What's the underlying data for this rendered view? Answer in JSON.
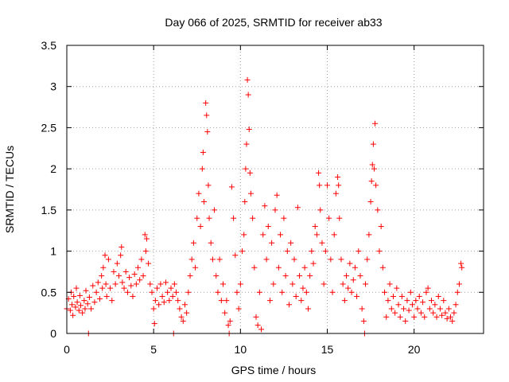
{
  "chart_data": {
    "type": "scatter",
    "title": "Day 066 of 2025, SRMTID for receiver ab33",
    "xlabel": "GPS time / hours",
    "ylabel": "SRMTID / TECUs",
    "xlim": [
      0,
      24
    ],
    "ylim": [
      0,
      3.5
    ],
    "xticks": [
      0,
      5,
      10,
      15,
      20
    ],
    "xtick_labels": [
      "0",
      "5",
      "10",
      "15",
      "20"
    ],
    "yticks": [
      0,
      0.5,
      1,
      1.5,
      2,
      2.5,
      3,
      3.5
    ],
    "ytick_labels": [
      "0",
      "0.5",
      "1",
      "1.5",
      "2",
      "2.5",
      "3",
      "3.5"
    ],
    "grid": true,
    "marker": "+",
    "color": "#ff0000",
    "series": [
      {
        "name": "SRMTID",
        "points": [
          [
            0.0,
            0.3
          ],
          [
            0.1,
            0.42
          ],
          [
            0.2,
            0.28
          ],
          [
            0.25,
            0.5
          ],
          [
            0.3,
            0.35
          ],
          [
            0.35,
            0.22
          ],
          [
            0.4,
            0.45
          ],
          [
            0.5,
            0.32
          ],
          [
            0.55,
            0.55
          ],
          [
            0.6,
            0.38
          ],
          [
            0.7,
            0.28
          ],
          [
            0.75,
            0.46
          ],
          [
            0.8,
            0.34
          ],
          [
            0.9,
            0.25
          ],
          [
            1.0,
            0.4
          ],
          [
            1.05,
            0.3
          ],
          [
            1.1,
            0.52
          ],
          [
            1.2,
            0.36
          ],
          [
            1.25,
            0.0
          ],
          [
            1.3,
            0.44
          ],
          [
            1.4,
            0.3
          ],
          [
            1.5,
            0.58
          ],
          [
            1.6,
            0.38
          ],
          [
            1.7,
            0.5
          ],
          [
            1.8,
            0.62
          ],
          [
            1.9,
            0.42
          ],
          [
            2.0,
            0.7
          ],
          [
            2.05,
            0.55
          ],
          [
            2.1,
            0.8
          ],
          [
            2.2,
            0.95
          ],
          [
            2.25,
            0.6
          ],
          [
            2.3,
            0.45
          ],
          [
            2.4,
            0.9
          ],
          [
            2.5,
            0.55
          ],
          [
            2.6,
            0.4
          ],
          [
            2.7,
            0.75
          ],
          [
            2.8,
            0.6
          ],
          [
            2.9,
            0.85
          ],
          [
            3.0,
            0.7
          ],
          [
            3.1,
            0.95
          ],
          [
            3.15,
            1.05
          ],
          [
            3.2,
            0.62
          ],
          [
            3.3,
            0.55
          ],
          [
            3.4,
            0.75
          ],
          [
            3.5,
            0.5
          ],
          [
            3.6,
            0.68
          ],
          [
            3.7,
            0.58
          ],
          [
            3.8,
            0.45
          ],
          [
            3.9,
            0.72
          ],
          [
            4.0,
            0.6
          ],
          [
            4.1,
            0.8
          ],
          [
            4.2,
            0.65
          ],
          [
            4.3,
            0.9
          ],
          [
            4.4,
            0.7
          ],
          [
            4.5,
            1.2
          ],
          [
            4.55,
            1.0
          ],
          [
            4.6,
            1.15
          ],
          [
            4.7,
            0.85
          ],
          [
            4.8,
            0.6
          ],
          [
            4.9,
            0.5
          ],
          [
            5.0,
            0.3
          ],
          [
            5.05,
            0.12
          ],
          [
            5.1,
            0.4
          ],
          [
            5.2,
            0.55
          ],
          [
            5.3,
            0.35
          ],
          [
            5.4,
            0.6
          ],
          [
            5.5,
            0.45
          ],
          [
            5.6,
            0.38
          ],
          [
            5.7,
            0.62
          ],
          [
            5.8,
            0.5
          ],
          [
            5.9,
            0.4
          ],
          [
            6.0,
            0.55
          ],
          [
            6.1,
            0.45
          ],
          [
            6.15,
            0.0
          ],
          [
            6.2,
            0.6
          ],
          [
            6.3,
            0.5
          ],
          [
            6.4,
            0.4
          ],
          [
            6.5,
            0.3
          ],
          [
            6.6,
            0.2
          ],
          [
            6.7,
            0.15
          ],
          [
            6.8,
            0.35
          ],
          [
            6.9,
            0.25
          ],
          [
            7.0,
            0.5
          ],
          [
            7.1,
            0.7
          ],
          [
            7.2,
            0.9
          ],
          [
            7.3,
            1.1
          ],
          [
            7.4,
            0.8
          ],
          [
            7.5,
            1.4
          ],
          [
            7.6,
            1.7
          ],
          [
            7.7,
            1.3
          ],
          [
            7.8,
            2.0
          ],
          [
            7.85,
            2.2
          ],
          [
            7.9,
            1.6
          ],
          [
            8.0,
            2.8
          ],
          [
            8.05,
            2.65
          ],
          [
            8.1,
            2.45
          ],
          [
            8.15,
            1.8
          ],
          [
            8.2,
            1.4
          ],
          [
            8.3,
            1.1
          ],
          [
            8.4,
            0.9
          ],
          [
            8.5,
            1.5
          ],
          [
            8.6,
            0.7
          ],
          [
            8.7,
            0.5
          ],
          [
            8.8,
            0.9
          ],
          [
            8.9,
            0.4
          ],
          [
            9.0,
            0.6
          ],
          [
            9.1,
            0.25
          ],
          [
            9.2,
            0.4
          ],
          [
            9.3,
            0.1
          ],
          [
            9.35,
            0.0
          ],
          [
            9.4,
            0.15
          ],
          [
            9.5,
            1.78
          ],
          [
            9.6,
            1.4
          ],
          [
            9.7,
            0.95
          ],
          [
            9.8,
            0.5
          ],
          [
            9.9,
            0.3
          ],
          [
            10.0,
            0.6
          ],
          [
            10.1,
            1.0
          ],
          [
            10.2,
            1.2
          ],
          [
            10.25,
            1.6
          ],
          [
            10.3,
            2.0
          ],
          [
            10.35,
            2.3
          ],
          [
            10.4,
            3.08
          ],
          [
            10.45,
            2.9
          ],
          [
            10.5,
            2.48
          ],
          [
            10.55,
            1.95
          ],
          [
            10.6,
            1.7
          ],
          [
            10.7,
            1.4
          ],
          [
            10.8,
            0.8
          ],
          [
            10.9,
            0.2
          ],
          [
            11.0,
            0.1
          ],
          [
            11.1,
            0.5
          ],
          [
            11.2,
            0.05
          ],
          [
            11.3,
            1.2
          ],
          [
            11.4,
            1.55
          ],
          [
            11.5,
            0.9
          ],
          [
            11.6,
            1.3
          ],
          [
            11.7,
            0.4
          ],
          [
            11.8,
            1.1
          ],
          [
            11.9,
            0.6
          ],
          [
            12.0,
            1.5
          ],
          [
            12.1,
            1.68
          ],
          [
            12.2,
            0.8
          ],
          [
            12.3,
            1.2
          ],
          [
            12.4,
            0.5
          ],
          [
            12.5,
            1.4
          ],
          [
            12.6,
            0.7
          ],
          [
            12.7,
            1.0
          ],
          [
            12.8,
            0.35
          ],
          [
            12.9,
            1.1
          ],
          [
            13.0,
            0.6
          ],
          [
            13.1,
            0.9
          ],
          [
            13.2,
            0.45
          ],
          [
            13.3,
            1.53
          ],
          [
            13.4,
            0.7
          ],
          [
            13.5,
            0.4
          ],
          [
            13.6,
            0.55
          ],
          [
            13.7,
            0.8
          ],
          [
            13.8,
            0.5
          ],
          [
            13.9,
            0.3
          ],
          [
            14.0,
            0.7
          ],
          [
            14.1,
            1.0
          ],
          [
            14.2,
            0.85
          ],
          [
            14.3,
            1.3
          ],
          [
            14.4,
            1.2
          ],
          [
            14.5,
            1.95
          ],
          [
            14.55,
            1.8
          ],
          [
            14.6,
            1.5
          ],
          [
            14.7,
            1.1
          ],
          [
            14.8,
            0.6
          ],
          [
            14.9,
            1.0
          ],
          [
            15.0,
            1.8
          ],
          [
            15.1,
            1.4
          ],
          [
            15.2,
            0.9
          ],
          [
            15.3,
            0.5
          ],
          [
            15.4,
            1.2
          ],
          [
            15.5,
            1.7
          ],
          [
            15.6,
            1.9
          ],
          [
            15.65,
            1.8
          ],
          [
            15.7,
            1.4
          ],
          [
            15.8,
            0.9
          ],
          [
            15.9,
            0.6
          ],
          [
            16.0,
            0.4
          ],
          [
            16.1,
            0.7
          ],
          [
            16.2,
            0.55
          ],
          [
            16.3,
            0.85
          ],
          [
            16.4,
            0.5
          ],
          [
            16.5,
            0.65
          ],
          [
            16.6,
            0.8
          ],
          [
            16.7,
            0.45
          ],
          [
            16.8,
            1.0
          ],
          [
            16.9,
            0.7
          ],
          [
            17.0,
            0.3
          ],
          [
            17.1,
            0.15
          ],
          [
            17.15,
            0.0
          ],
          [
            17.2,
            0.6
          ],
          [
            17.3,
            0.9
          ],
          [
            17.4,
            1.2
          ],
          [
            17.5,
            1.6
          ],
          [
            17.55,
            1.85
          ],
          [
            17.6,
            2.05
          ],
          [
            17.65,
            2.3
          ],
          [
            17.7,
            2.0
          ],
          [
            17.75,
            2.55
          ],
          [
            17.8,
            1.8
          ],
          [
            17.9,
            1.5
          ],
          [
            18.0,
            1.0
          ],
          [
            18.1,
            1.3
          ],
          [
            18.2,
            0.8
          ],
          [
            18.3,
            0.5
          ],
          [
            18.4,
            0.2
          ],
          [
            18.5,
            0.4
          ],
          [
            18.6,
            0.6
          ],
          [
            18.7,
            0.3
          ],
          [
            18.8,
            0.45
          ],
          [
            18.9,
            0.25
          ],
          [
            19.0,
            0.55
          ],
          [
            19.1,
            0.35
          ],
          [
            19.2,
            0.2
          ],
          [
            19.3,
            0.45
          ],
          [
            19.4,
            0.3
          ],
          [
            19.5,
            0.15
          ],
          [
            19.6,
            0.4
          ],
          [
            19.7,
            0.28
          ],
          [
            19.8,
            0.5
          ],
          [
            19.9,
            0.35
          ],
          [
            20.0,
            0.2
          ],
          [
            20.1,
            0.4
          ],
          [
            20.2,
            0.3
          ],
          [
            20.3,
            0.45
          ],
          [
            20.4,
            0.25
          ],
          [
            20.5,
            0.38
          ],
          [
            20.6,
            0.2
          ],
          [
            20.7,
            0.5
          ],
          [
            20.8,
            0.55
          ],
          [
            20.9,
            0.3
          ],
          [
            21.0,
            0.4
          ],
          [
            21.1,
            0.25
          ],
          [
            21.2,
            0.35
          ],
          [
            21.3,
            0.2
          ],
          [
            21.4,
            0.45
          ],
          [
            21.5,
            0.3
          ],
          [
            21.6,
            0.22
          ],
          [
            21.7,
            0.4
          ],
          [
            21.8,
            0.25
          ],
          [
            21.9,
            0.18
          ],
          [
            22.0,
            0.3
          ],
          [
            22.1,
            0.2
          ],
          [
            22.2,
            0.15
          ],
          [
            22.3,
            0.25
          ],
          [
            22.4,
            0.35
          ],
          [
            22.5,
            0.5
          ],
          [
            22.6,
            0.6
          ],
          [
            22.7,
            0.85
          ],
          [
            22.75,
            0.8
          ]
        ]
      }
    ]
  }
}
